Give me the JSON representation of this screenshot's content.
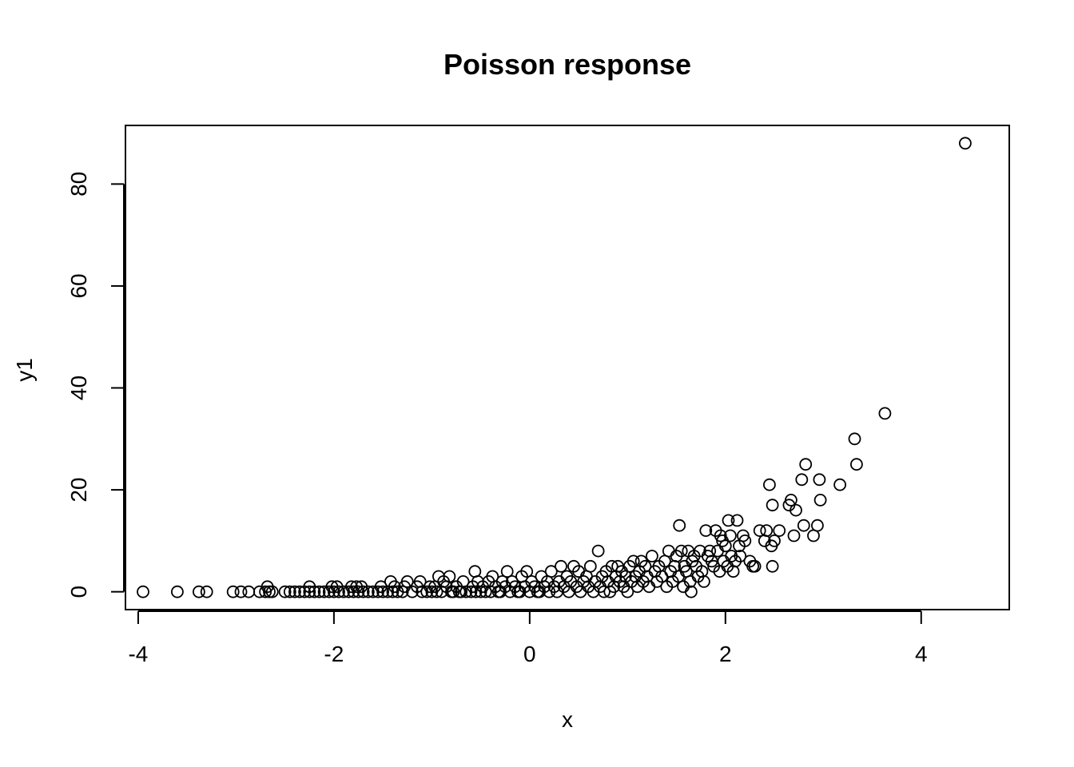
{
  "chart_data": {
    "type": "scatter",
    "title": "Poisson response",
    "xlabel": "x",
    "ylabel": "y1",
    "xlim": [
      -4.13,
      4.9
    ],
    "ylim": [
      -3.5,
      91.5
    ],
    "x_ticks": [
      -4,
      -2,
      0,
      2,
      4
    ],
    "y_ticks": [
      0,
      20,
      40,
      60,
      80
    ],
    "grid": false,
    "marker": "open-circle",
    "series": [
      {
        "points": [
          [
            -3.95,
            0
          ],
          [
            -3.6,
            0
          ],
          [
            -3.38,
            0
          ],
          [
            -3.3,
            0
          ],
          [
            -3.03,
            0
          ],
          [
            -2.95,
            0
          ],
          [
            -2.87,
            0
          ],
          [
            -2.76,
            0
          ],
          [
            -2.7,
            0
          ],
          [
            -2.66,
            0
          ],
          [
            -2.68,
            1
          ],
          [
            -2.63,
            0
          ],
          [
            -2.5,
            0
          ],
          [
            -2.45,
            0
          ],
          [
            -2.4,
            0
          ],
          [
            -2.35,
            0
          ],
          [
            -2.3,
            0
          ],
          [
            -2.25,
            0
          ],
          [
            -2.2,
            0
          ],
          [
            -2.25,
            1
          ],
          [
            -2.15,
            0
          ],
          [
            -2.1,
            0
          ],
          [
            -2.05,
            0
          ],
          [
            -2.0,
            0
          ],
          [
            -2.02,
            1
          ],
          [
            -1.97,
            1
          ],
          [
            -1.95,
            0
          ],
          [
            -1.9,
            0
          ],
          [
            -1.85,
            0
          ],
          [
            -1.8,
            0
          ],
          [
            -1.82,
            1
          ],
          [
            -1.77,
            1
          ],
          [
            -1.75,
            0
          ],
          [
            -1.7,
            0
          ],
          [
            -1.72,
            1
          ],
          [
            -1.65,
            0
          ],
          [
            -1.6,
            0
          ],
          [
            -1.55,
            0
          ],
          [
            -1.5,
            0
          ],
          [
            -1.52,
            1
          ],
          [
            -1.45,
            0
          ],
          [
            -1.4,
            0
          ],
          [
            -1.42,
            2
          ],
          [
            -1.38,
            1
          ],
          [
            -1.35,
            0
          ],
          [
            -1.3,
            0
          ],
          [
            -1.28,
            1
          ],
          [
            -1.25,
            2
          ],
          [
            -1.2,
            0
          ],
          [
            -1.15,
            1
          ],
          [
            -1.1,
            0
          ],
          [
            -1.12,
            2
          ],
          [
            -1.05,
            0
          ],
          [
            -1.0,
            0
          ],
          [
            -1.02,
            1
          ],
          [
            -0.97,
            1
          ],
          [
            -0.95,
            0
          ],
          [
            -0.93,
            3
          ],
          [
            -0.9,
            0
          ],
          [
            -0.88,
            2
          ],
          [
            -0.85,
            1
          ],
          [
            -0.82,
            3
          ],
          [
            -0.8,
            0
          ],
          [
            -0.78,
            0
          ],
          [
            -0.75,
            1
          ],
          [
            -0.72,
            0
          ],
          [
            -0.7,
            0
          ],
          [
            -0.68,
            2
          ],
          [
            -0.65,
            0
          ],
          [
            -0.6,
            0
          ],
          [
            -0.58,
            1
          ],
          [
            -0.56,
            4
          ],
          [
            -0.55,
            0
          ],
          [
            -0.53,
            2
          ],
          [
            -0.5,
            0
          ],
          [
            -0.48,
            1
          ],
          [
            -0.45,
            0
          ],
          [
            -0.42,
            2
          ],
          [
            -0.4,
            0
          ],
          [
            -0.38,
            3
          ],
          [
            -0.35,
            1
          ],
          [
            -0.32,
            0
          ],
          [
            -0.3,
            0
          ],
          [
            -0.28,
            2
          ],
          [
            -0.25,
            1
          ],
          [
            -0.23,
            4
          ],
          [
            -0.2,
            0
          ],
          [
            -0.18,
            2
          ],
          [
            -0.15,
            1
          ],
          [
            -0.12,
            0
          ],
          [
            -0.1,
            0
          ],
          [
            -0.08,
            3
          ],
          [
            -0.05,
            1
          ],
          [
            -0.03,
            4
          ],
          [
            0.0,
            0
          ],
          [
            0.02,
            2
          ],
          [
            0.05,
            1
          ],
          [
            0.08,
            0
          ],
          [
            0.1,
            0
          ],
          [
            0.12,
            3
          ],
          [
            0.15,
            1
          ],
          [
            0.18,
            2
          ],
          [
            0.2,
            0
          ],
          [
            0.22,
            4
          ],
          [
            0.25,
            1
          ],
          [
            0.28,
            0
          ],
          [
            0.3,
            2
          ],
          [
            0.32,
            5
          ],
          [
            0.35,
            1
          ],
          [
            0.38,
            3
          ],
          [
            0.4,
            0
          ],
          [
            0.42,
            2
          ],
          [
            0.45,
            5
          ],
          [
            0.48,
            1
          ],
          [
            0.5,
            4
          ],
          [
            0.52,
            0
          ],
          [
            0.55,
            2
          ],
          [
            0.58,
            3
          ],
          [
            0.6,
            1
          ],
          [
            0.62,
            5
          ],
          [
            0.65,
            0
          ],
          [
            0.67,
            2
          ],
          [
            0.7,
            8
          ],
          [
            0.72,
            1
          ],
          [
            0.74,
            3
          ],
          [
            0.76,
            0
          ],
          [
            0.78,
            4
          ],
          [
            0.8,
            2
          ],
          [
            0.82,
            0
          ],
          [
            0.84,
            5
          ],
          [
            0.86,
            1
          ],
          [
            0.88,
            3
          ],
          [
            0.9,
            5
          ],
          [
            0.92,
            2
          ],
          [
            0.94,
            4
          ],
          [
            0.96,
            1
          ],
          [
            0.98,
            3
          ],
          [
            1.0,
            0
          ],
          [
            1.02,
            5
          ],
          [
            1.04,
            2
          ],
          [
            1.06,
            6
          ],
          [
            1.08,
            3
          ],
          [
            1.1,
            1
          ],
          [
            1.12,
            4
          ],
          [
            1.14,
            6
          ],
          [
            1.16,
            2
          ],
          [
            1.18,
            5
          ],
          [
            1.2,
            3
          ],
          [
            1.22,
            1
          ],
          [
            1.25,
            7
          ],
          [
            1.28,
            4
          ],
          [
            1.3,
            2
          ],
          [
            1.32,
            5
          ],
          [
            1.35,
            3
          ],
          [
            1.38,
            6
          ],
          [
            1.4,
            1
          ],
          [
            1.42,
            8
          ],
          [
            1.44,
            4
          ],
          [
            1.46,
            2
          ],
          [
            1.48,
            5
          ],
          [
            1.5,
            7
          ],
          [
            1.52,
            3
          ],
          [
            1.53,
            13
          ],
          [
            1.55,
            8
          ],
          [
            1.57,
            1
          ],
          [
            1.58,
            5
          ],
          [
            1.6,
            4
          ],
          [
            1.62,
            8
          ],
          [
            1.64,
            2
          ],
          [
            1.65,
            0
          ],
          [
            1.66,
            6
          ],
          [
            1.68,
            7
          ],
          [
            1.7,
            5
          ],
          [
            1.72,
            3
          ],
          [
            1.74,
            8
          ],
          [
            1.76,
            4
          ],
          [
            1.78,
            2
          ],
          [
            1.8,
            12
          ],
          [
            1.82,
            7
          ],
          [
            1.84,
            8
          ],
          [
            1.86,
            6
          ],
          [
            1.88,
            5
          ],
          [
            1.9,
            12
          ],
          [
            1.92,
            8
          ],
          [
            1.94,
            4
          ],
          [
            1.95,
            11
          ],
          [
            1.97,
            10
          ],
          [
            1.98,
            6
          ],
          [
            2.0,
            9
          ],
          [
            2.02,
            5
          ],
          [
            2.03,
            14
          ],
          [
            2.05,
            11
          ],
          [
            2.06,
            7
          ],
          [
            2.08,
            4
          ],
          [
            2.1,
            6
          ],
          [
            2.12,
            14
          ],
          [
            2.14,
            9
          ],
          [
            2.15,
            7
          ],
          [
            2.18,
            11
          ],
          [
            2.2,
            10
          ],
          [
            2.25,
            6
          ],
          [
            2.28,
            5
          ],
          [
            2.3,
            5
          ],
          [
            2.35,
            12
          ],
          [
            2.4,
            10
          ],
          [
            2.42,
            12
          ],
          [
            2.45,
            21
          ],
          [
            2.47,
            9
          ],
          [
            2.48,
            5
          ],
          [
            2.48,
            17
          ],
          [
            2.5,
            10
          ],
          [
            2.55,
            12
          ],
          [
            2.65,
            17
          ],
          [
            2.67,
            18
          ],
          [
            2.7,
            11
          ],
          [
            2.72,
            16
          ],
          [
            2.78,
            22
          ],
          [
            2.8,
            13
          ],
          [
            2.82,
            25
          ],
          [
            2.9,
            11
          ],
          [
            2.94,
            13
          ],
          [
            2.96,
            22
          ],
          [
            2.97,
            18
          ],
          [
            3.17,
            21
          ],
          [
            3.32,
            30
          ],
          [
            3.34,
            25
          ],
          [
            3.63,
            35
          ],
          [
            4.45,
            88
          ]
        ]
      }
    ]
  }
}
